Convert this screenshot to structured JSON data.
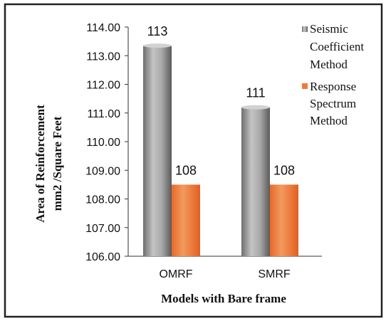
{
  "chart_data": {
    "type": "bar",
    "categories": [
      "OMRF",
      "SMRF"
    ],
    "series": [
      {
        "name": "Seismic Coefficient Method",
        "values": [
          113.35,
          111.2
        ],
        "labels": [
          "113",
          "111"
        ],
        "color": "#8c8c8c"
      },
      {
        "name": "Response Spectrum Method",
        "values": [
          108.5,
          108.5
        ],
        "labels": [
          "108",
          "108"
        ],
        "color": "#f07a3a"
      }
    ],
    "ylim": [
      106,
      114
    ],
    "yticks": [
      "106.00",
      "107.00",
      "108.00",
      "109.00",
      "110.00",
      "111.00",
      "112.00",
      "113.00",
      "114.00"
    ],
    "xlabel": "Models with Bare frame",
    "ylabel_lines": [
      "Area of Reinforcement",
      "mm2 /Square Feet"
    ],
    "legend_lines": [
      [
        "Seismic",
        "Coefficient",
        "Method"
      ],
      [
        "Response",
        "Spectrum",
        "Method"
      ]
    ],
    "legend_position": "right",
    "grid": false
  }
}
